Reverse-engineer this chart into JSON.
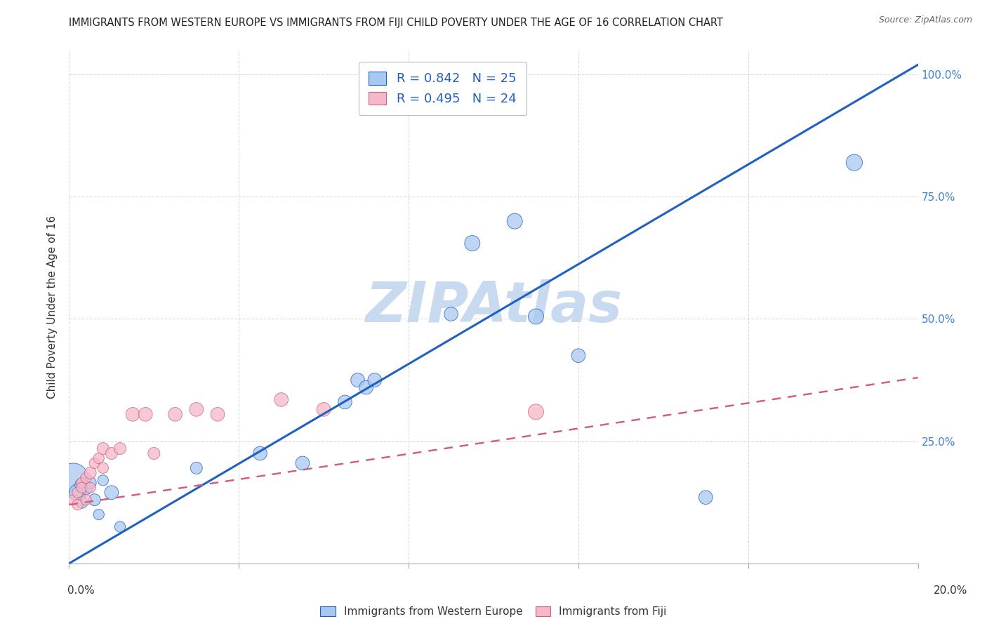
{
  "title": "IMMIGRANTS FROM WESTERN EUROPE VS IMMIGRANTS FROM FIJI CHILD POVERTY UNDER THE AGE OF 16 CORRELATION CHART",
  "source": "Source: ZipAtlas.com",
  "ylabel": "Child Poverty Under the Age of 16",
  "ytick_values": [
    0.0,
    0.25,
    0.5,
    0.75,
    1.0
  ],
  "xlim": [
    0.0,
    0.2
  ],
  "ylim": [
    0.0,
    1.05
  ],
  "legend_blue_r": "R = 0.842",
  "legend_blue_n": "N = 25",
  "legend_pink_r": "R = 0.495",
  "legend_pink_n": "N = 24",
  "watermark": "ZIPAtlas",
  "blue_scatter_x": [
    0.001,
    0.002,
    0.003,
    0.003,
    0.004,
    0.005,
    0.006,
    0.007,
    0.008,
    0.01,
    0.012,
    0.03,
    0.045,
    0.055,
    0.065,
    0.068,
    0.07,
    0.072,
    0.09,
    0.095,
    0.105,
    0.11,
    0.12,
    0.15,
    0.185
  ],
  "blue_scatter_y": [
    0.175,
    0.145,
    0.16,
    0.125,
    0.155,
    0.165,
    0.13,
    0.1,
    0.17,
    0.145,
    0.075,
    0.195,
    0.225,
    0.205,
    0.33,
    0.375,
    0.36,
    0.375,
    0.51,
    0.655,
    0.7,
    0.505,
    0.425,
    0.135,
    0.82
  ],
  "blue_scatter_sizes": [
    900,
    300,
    200,
    150,
    200,
    150,
    150,
    120,
    120,
    200,
    120,
    150,
    200,
    200,
    200,
    200,
    200,
    200,
    200,
    250,
    250,
    250,
    200,
    200,
    280
  ],
  "pink_scatter_x": [
    0.001,
    0.002,
    0.002,
    0.003,
    0.003,
    0.004,
    0.004,
    0.005,
    0.005,
    0.006,
    0.007,
    0.008,
    0.008,
    0.01,
    0.012,
    0.015,
    0.018,
    0.02,
    0.025,
    0.03,
    0.035,
    0.05,
    0.06,
    0.11
  ],
  "pink_scatter_y": [
    0.13,
    0.12,
    0.145,
    0.165,
    0.155,
    0.13,
    0.175,
    0.155,
    0.185,
    0.205,
    0.215,
    0.235,
    0.195,
    0.225,
    0.235,
    0.305,
    0.305,
    0.225,
    0.305,
    0.315,
    0.305,
    0.335,
    0.315,
    0.31
  ],
  "pink_scatter_sizes": [
    120,
    120,
    120,
    120,
    120,
    120,
    120,
    120,
    150,
    120,
    120,
    150,
    120,
    150,
    150,
    200,
    200,
    150,
    200,
    200,
    200,
    200,
    200,
    250
  ],
  "blue_line_x": [
    0.0,
    0.2
  ],
  "blue_line_y": [
    0.0,
    1.02
  ],
  "pink_line_x": [
    0.0,
    0.2
  ],
  "pink_line_y": [
    0.12,
    0.38
  ],
  "blue_color": "#a8c8f0",
  "pink_color": "#f5b8c8",
  "blue_line_color": "#2060c0",
  "pink_line_color": "#d06080",
  "grid_color": "#d8d8d8",
  "title_color": "#222222",
  "watermark_color": "#c8daf0",
  "background_color": "#ffffff",
  "right_tick_color": "#4080d0",
  "bottom_label_color": "#333333",
  "xtick_positions": [
    0.0,
    0.04,
    0.08,
    0.12,
    0.16,
    0.2
  ]
}
